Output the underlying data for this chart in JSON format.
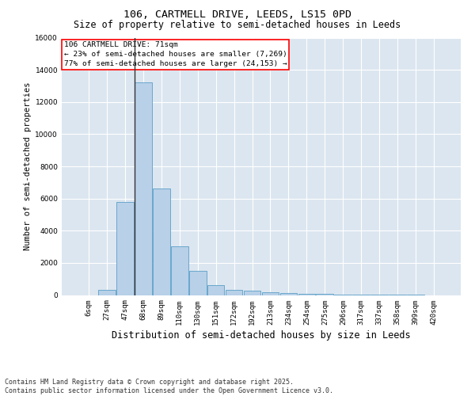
{
  "title_line1": "106, CARTMELL DRIVE, LEEDS, LS15 0PD",
  "title_line2": "Size of property relative to semi-detached houses in Leeds",
  "xlabel": "Distribution of semi-detached houses by size in Leeds",
  "ylabel": "Number of semi-detached properties",
  "bar_color": "#b8d0e8",
  "bar_edge_color": "#5a9fc8",
  "bg_color": "#dce6f0",
  "grid_color": "white",
  "categories": [
    "6sqm",
    "27sqm",
    "47sqm",
    "68sqm",
    "89sqm",
    "110sqm",
    "130sqm",
    "151sqm",
    "172sqm",
    "192sqm",
    "213sqm",
    "234sqm",
    "254sqm",
    "275sqm",
    "296sqm",
    "317sqm",
    "337sqm",
    "358sqm",
    "399sqm",
    "420sqm"
  ],
  "values": [
    0,
    300,
    5800,
    13200,
    6600,
    3050,
    1500,
    600,
    300,
    250,
    150,
    100,
    70,
    50,
    20,
    10,
    5,
    2,
    1,
    0
  ],
  "ylim": [
    0,
    16000
  ],
  "yticks": [
    0,
    2000,
    4000,
    6000,
    8000,
    10000,
    12000,
    14000,
    16000
  ],
  "subject_bar_index": 3,
  "annotation_title": "106 CARTMELL DRIVE: 71sqm",
  "annotation_line2": "← 23% of semi-detached houses are smaller (7,269)",
  "annotation_line3": "77% of semi-detached houses are larger (24,153) →",
  "annotation_box_color": "white",
  "annotation_box_edge_color": "red",
  "vline_color": "#333333",
  "footer_line1": "Contains HM Land Registry data © Crown copyright and database right 2025.",
  "footer_line2": "Contains public sector information licensed under the Open Government Licence v3.0.",
  "title_fontsize": 9.5,
  "subtitle_fontsize": 8.5,
  "tick_fontsize": 6.5,
  "ylabel_fontsize": 7.5,
  "xlabel_fontsize": 8.5,
  "annotation_fontsize": 6.8,
  "footer_fontsize": 6.0
}
